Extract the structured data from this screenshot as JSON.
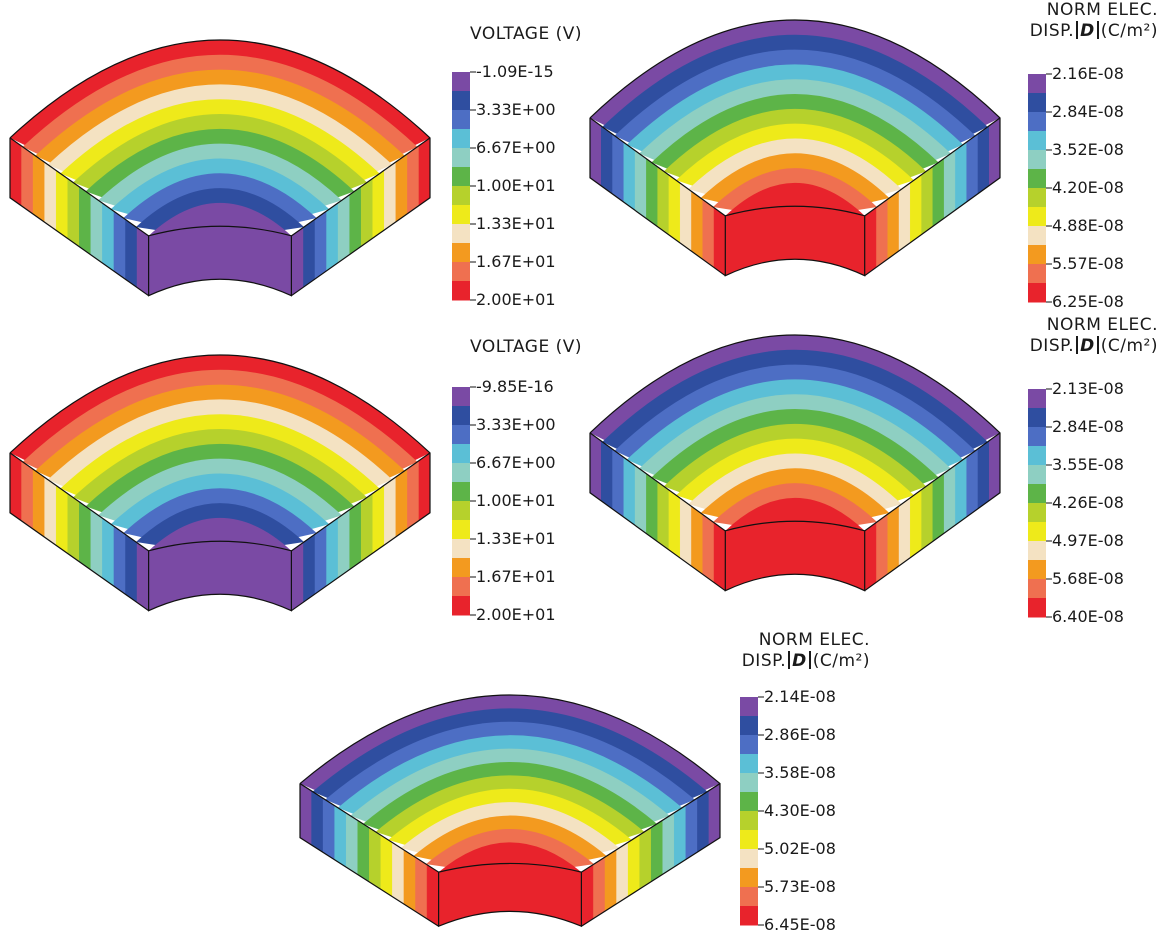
{
  "colormap": [
    "#7a4aa4",
    "#2f4ea0",
    "#4d6ec4",
    "#5bbfd6",
    "#8ecfc2",
    "#5db448",
    "#b6d12c",
    "#eeea1a",
    "#f4e2c2",
    "#f39a1f",
    "#ef7050",
    "#e8232c"
  ],
  "figures": [
    {
      "id": "a-voltage",
      "title_line1": "",
      "title_line2": "VOLTAGE (V)",
      "ticks": [
        "-1.09E-15",
        "3.33E+00",
        "6.67E+00",
        "1.00E+01",
        "1.33E+01",
        "1.67E+01",
        "2.00E+01"
      ],
      "gradient": "inner-low"
    },
    {
      "id": "a-displacement",
      "title_line1": "NORM ELEC.",
      "title_line2_prefix": "DISP.",
      "symbol": "D",
      "title_line2_suffix": "(C/m²)",
      "ticks": [
        "2.16E-08",
        "2.84E-08",
        "3.52E-08",
        "4.20E-08",
        "4.88E-08",
        "5.57E-08",
        "6.25E-08"
      ],
      "gradient": "inner-high"
    },
    {
      "id": "b-voltage",
      "title_line1": "",
      "title_line2": "VOLTAGE (V)",
      "ticks": [
        "-9.85E-16",
        "3.33E+00",
        "6.67E+00",
        "1.00E+01",
        "1.33E+01",
        "1.67E+01",
        "2.00E+01"
      ],
      "gradient": "inner-low"
    },
    {
      "id": "b-displacement",
      "title_line1": "NORM ELEC.",
      "title_line2_prefix": "DISP.",
      "symbol": "D",
      "title_line2_suffix": "(C/m²)",
      "ticks": [
        "2.13E-08",
        "2.84E-08",
        "3.55E-08",
        "4.26E-08",
        "4.97E-08",
        "5.68E-08",
        "6.40E-08"
      ],
      "gradient": "inner-high"
    },
    {
      "id": "c-displacement",
      "title_line1": "NORM ELEC.",
      "title_line2_prefix": "DISP.",
      "symbol": "D",
      "title_line2_suffix": "(C/m²)",
      "ticks": [
        "2.14E-08",
        "2.86E-08",
        "3.58E-08",
        "4.30E-08",
        "5.02E-08",
        "5.73E-08",
        "6.45E-08"
      ],
      "gradient": "inner-high"
    }
  ]
}
